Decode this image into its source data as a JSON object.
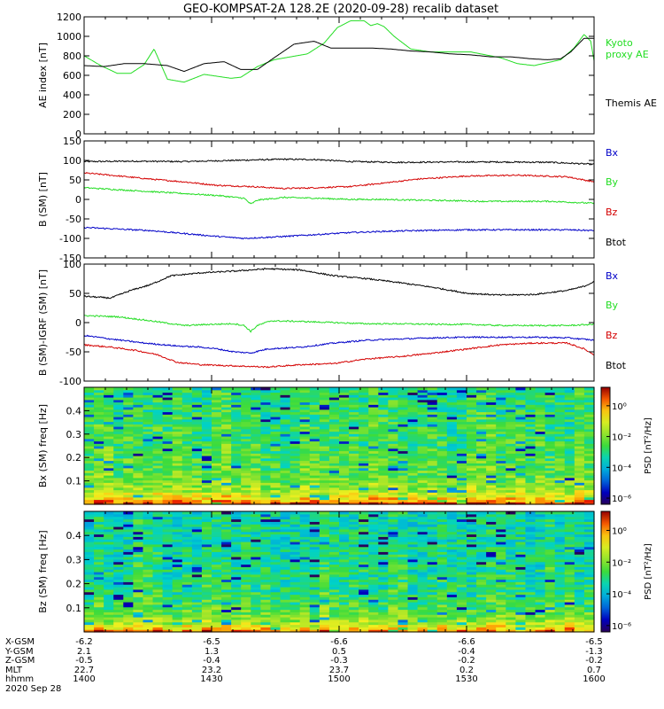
{
  "title": "GEO-KOMPSAT-2A 128.2E (2020-09-28) recalib dataset",
  "colors": {
    "black": "#000000",
    "red": "#d40000",
    "green": "#22dd22",
    "blue": "#0000c8"
  },
  "chart_data": [
    {
      "type": "line",
      "ylabel": "AE index [nT]",
      "x_hhmm": [
        "1400",
        "1430",
        "1500",
        "1530",
        "1600"
      ],
      "ylim": [
        0,
        1200
      ],
      "yticks": [
        "0",
        "200",
        "400",
        "600",
        "800",
        "1000",
        "1200"
      ],
      "yticks_values": [
        0,
        200,
        400,
        600,
        800,
        1000,
        1200
      ],
      "legend_right": [
        {
          "text": "Kyoto",
          "color": "green"
        },
        {
          "text": "proxy AE",
          "color": "green"
        },
        {
          "text": "Themis AE",
          "color": "black"
        }
      ],
      "series": [
        {
          "color": "green",
          "x": [
            0,
            5,
            10,
            14,
            18,
            21,
            25,
            30,
            36,
            44,
            47,
            52,
            57,
            62,
            67,
            72,
            76,
            80,
            84,
            86,
            88,
            90,
            93,
            98,
            104,
            112,
            116,
            119,
            125,
            130,
            135,
            139,
            143,
            147,
            150,
            152,
            153
          ],
          "y": [
            800,
            700,
            620,
            620,
            710,
            870,
            560,
            530,
            610,
            570,
            580,
            690,
            760,
            790,
            820,
            930,
            1090,
            1160,
            1160,
            1110,
            1130,
            1100,
            1000,
            870,
            840,
            840,
            840,
            820,
            780,
            720,
            700,
            730,
            760,
            880,
            1020,
            950,
            750
          ]
        },
        {
          "color": "black",
          "x": [
            0,
            6,
            12,
            18,
            25,
            30,
            36,
            42,
            47,
            52,
            57,
            63,
            69,
            74,
            80,
            86,
            92,
            98,
            104,
            110,
            116,
            122,
            128,
            134,
            139,
            143,
            146,
            150,
            153
          ],
          "y": [
            700,
            690,
            720,
            720,
            700,
            640,
            720,
            740,
            660,
            660,
            780,
            920,
            950,
            880,
            880,
            880,
            870,
            850,
            840,
            820,
            810,
            790,
            790,
            770,
            760,
            770,
            840,
            980,
            980
          ]
        }
      ]
    },
    {
      "type": "line",
      "ylabel": "B (SM) [nT]",
      "x_hhmm": [
        "1400",
        "1430",
        "1500",
        "1530",
        "1600"
      ],
      "ylim": [
        -150,
        150
      ],
      "yticks": [
        "-150",
        "-100",
        "-50",
        "0",
        "50",
        "100",
        "150"
      ],
      "yticks_values": [
        -150,
        -100,
        -50,
        0,
        50,
        100,
        150
      ],
      "legend_right": [
        {
          "text": "Bx",
          "color": "blue"
        },
        {
          "text": "By",
          "color": "green"
        },
        {
          "text": "Bz",
          "color": "red"
        },
        {
          "text": "Btot",
          "color": "black"
        }
      ],
      "series": [
        {
          "color": "black",
          "x": [
            0,
            15,
            30,
            45,
            60,
            70,
            80,
            95,
            110,
            125,
            140,
            153
          ],
          "y": [
            97,
            98,
            97,
            100,
            103,
            102,
            97,
            95,
            96,
            96,
            95,
            90
          ]
        },
        {
          "color": "red",
          "x": [
            0,
            8,
            20,
            30,
            40,
            50,
            60,
            70,
            80,
            90,
            100,
            115,
            130,
            145,
            153
          ],
          "y": [
            68,
            62,
            52,
            45,
            36,
            33,
            28,
            30,
            33,
            42,
            52,
            60,
            62,
            58,
            45
          ]
        },
        {
          "color": "green",
          "x": [
            0,
            10,
            20,
            30,
            40,
            48,
            50,
            52,
            54,
            60,
            70,
            80,
            90,
            100,
            110,
            120,
            130,
            140,
            153
          ],
          "y": [
            30,
            25,
            20,
            15,
            10,
            3,
            -12,
            -2,
            0,
            5,
            3,
            0,
            0,
            -2,
            -3,
            -5,
            -5,
            -5,
            -10
          ]
        },
        {
          "color": "blue",
          "x": [
            0,
            20,
            40,
            48,
            60,
            80,
            90,
            100,
            115,
            130,
            145,
            153
          ],
          "y": [
            -72,
            -80,
            -95,
            -100,
            -95,
            -85,
            -82,
            -80,
            -78,
            -78,
            -78,
            -80
          ]
        }
      ]
    },
    {
      "type": "line",
      "ylabel": "B (SM)-IGRF (SM) [nT]",
      "x_hhmm": [
        "1400",
        "1430",
        "1500",
        "1530",
        "1600"
      ],
      "ylim": [
        -100,
        100
      ],
      "yticks": [
        "-100",
        "-50",
        "0",
        "50",
        "100"
      ],
      "yticks_values": [
        -100,
        -50,
        0,
        50,
        100
      ],
      "legend_right": [
        {
          "text": "Bx",
          "color": "blue"
        },
        {
          "text": "By",
          "color": "green"
        },
        {
          "text": "Bz",
          "color": "red"
        },
        {
          "text": "Btot",
          "color": "black"
        }
      ],
      "series": [
        {
          "color": "black",
          "x": [
            0,
            8,
            14,
            20,
            26,
            35,
            45,
            55,
            65,
            75,
            85,
            95,
            105,
            115,
            125,
            135,
            145,
            150,
            153
          ],
          "y": [
            45,
            42,
            55,
            65,
            80,
            85,
            88,
            92,
            90,
            80,
            75,
            68,
            60,
            50,
            47,
            48,
            55,
            62,
            70
          ]
        },
        {
          "color": "green",
          "x": [
            0,
            10,
            20,
            30,
            38,
            45,
            48,
            50,
            52,
            56,
            65,
            75,
            85,
            95,
            105,
            115,
            125,
            135,
            145,
            153
          ],
          "y": [
            12,
            10,
            3,
            -5,
            -3,
            -2,
            -5,
            -15,
            -5,
            3,
            2,
            0,
            -2,
            -2,
            -3,
            -3,
            -5,
            -5,
            -5,
            -3
          ]
        },
        {
          "color": "blue",
          "x": [
            0,
            8,
            18,
            28,
            35,
            40,
            45,
            50,
            55,
            65,
            75,
            85,
            95,
            105,
            115,
            125,
            135,
            145,
            153
          ],
          "y": [
            -22,
            -28,
            -35,
            -40,
            -42,
            -45,
            -50,
            -52,
            -45,
            -42,
            -35,
            -30,
            -28,
            -26,
            -25,
            -25,
            -25,
            -26,
            -30
          ]
        },
        {
          "color": "red",
          "x": [
            0,
            8,
            16,
            22,
            28,
            35,
            45,
            55,
            65,
            75,
            85,
            95,
            105,
            115,
            125,
            135,
            145,
            150,
            153
          ],
          "y": [
            -38,
            -42,
            -48,
            -55,
            -68,
            -72,
            -74,
            -76,
            -72,
            -70,
            -62,
            -58,
            -52,
            -45,
            -38,
            -35,
            -35,
            -45,
            -55
          ]
        }
      ]
    },
    {
      "type": "heatmap",
      "ylabel": "Bx (SM) freq [Hz]",
      "yticks": [
        "0.1",
        "0.2",
        "0.3",
        "0.4"
      ],
      "yticks_values": [
        0.1,
        0.2,
        0.3,
        0.4
      ],
      "ylim": [
        0,
        0.5
      ],
      "colorbar_label": "PSD [nT²/Hz]",
      "colorbar_ticks": [
        "10⁰",
        "10⁻²",
        "10⁻⁴",
        "10⁻⁶"
      ],
      "colorbar_values": [
        1,
        0.01,
        0.0001,
        1e-06
      ],
      "description": "Power concentrated below 0.05 Hz (red/orange), yellow to 0.15 Hz, green above"
    },
    {
      "type": "heatmap",
      "ylabel": "Bz (SM) freq [Hz]",
      "yticks": [
        "0.1",
        "0.2",
        "0.3",
        "0.4"
      ],
      "yticks_values": [
        0.1,
        0.2,
        0.3,
        0.4
      ],
      "ylim": [
        0,
        0.5
      ],
      "colorbar_label": "PSD [nT²/Hz]",
      "colorbar_ticks": [
        "10⁰",
        "10⁻²",
        "10⁻⁴",
        "10⁻⁶"
      ],
      "colorbar_values": [
        1,
        0.01,
        0.0001,
        1e-06
      ],
      "description": "Power concentrated below 0.05 Hz, more cyan/blue at high frequencies than Bx"
    }
  ],
  "orbit_table": {
    "labels": [
      "X-GSM",
      "Y-GSM",
      "Z-GSM",
      "MLT",
      "hhmm"
    ],
    "columns": [
      [
        "-6.2",
        "2.1",
        "-0.5",
        "22.7",
        "1400"
      ],
      [
        "-6.5",
        "1.3",
        "-0.4",
        "23.2",
        "1430"
      ],
      [
        "-6.6",
        "0.5",
        "-0.3",
        "23.7",
        "1500"
      ],
      [
        "-6.6",
        "-0.4",
        "-0.2",
        "0.2",
        "1530"
      ],
      [
        "-6.5",
        "-1.3",
        "-0.2",
        "0.7",
        "1600"
      ]
    ],
    "date": "2020 Sep 28"
  }
}
